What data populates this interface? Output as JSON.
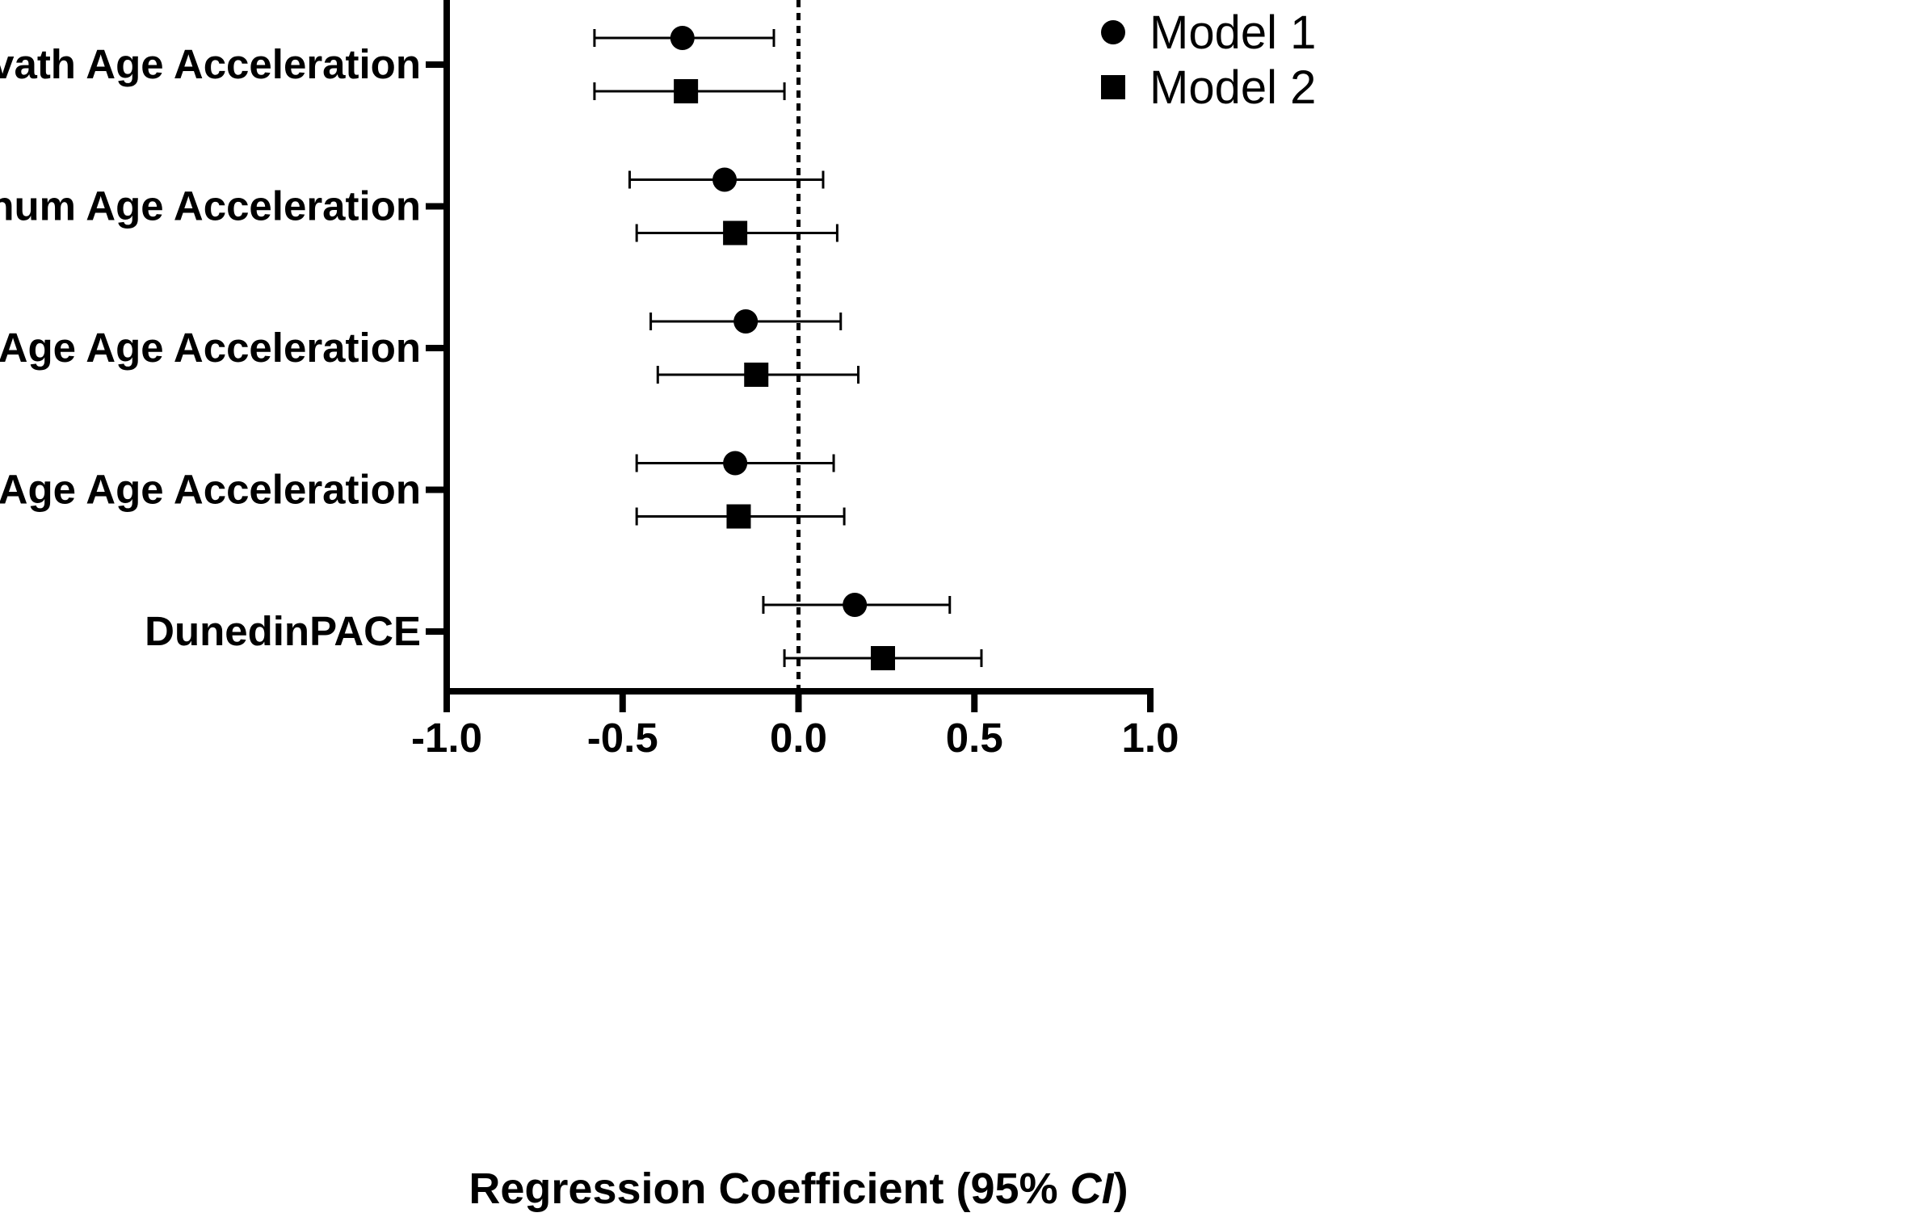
{
  "chart_data": {
    "type": "forest",
    "categories": [
      "Horvath Age Acceleration",
      "Hannum Age Acceleration",
      "GrimAge Age Acceleration",
      "PhenoAge Age Acceleration",
      "DunedinPACE"
    ],
    "series": [
      {
        "name": "Model 1",
        "marker": "circle",
        "estimates": [
          -0.33,
          -0.21,
          -0.15,
          -0.18,
          0.16
        ],
        "ci_low": [
          -0.58,
          -0.48,
          -0.42,
          -0.46,
          -0.1
        ],
        "ci_high": [
          -0.07,
          0.07,
          0.12,
          0.1,
          0.43
        ]
      },
      {
        "name": "Model 2",
        "marker": "square",
        "estimates": [
          -0.32,
          -0.18,
          -0.12,
          -0.17,
          0.24
        ],
        "ci_low": [
          -0.58,
          -0.46,
          -0.4,
          -0.46,
          -0.04
        ],
        "ci_high": [
          -0.04,
          0.11,
          0.17,
          0.13,
          0.52
        ]
      }
    ],
    "xlim": [
      -1.0,
      1.0
    ],
    "xticks": [
      "-1.0",
      "-0.5",
      "0.0",
      "0.5",
      "1.0"
    ],
    "reference_line": 0.0,
    "xlabel": "Regression Coefficient (95% ",
    "xlabel_italic": "CI",
    "xlabel_end": ")",
    "legend_position": "top-right",
    "colors": {
      "ink": "#000000",
      "background": "#ffffff"
    }
  }
}
